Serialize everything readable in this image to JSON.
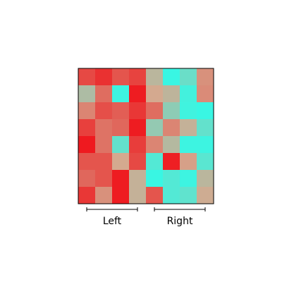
{
  "chart_data": {
    "type": "heatmap",
    "rows": 8,
    "cols": 8,
    "colors": {
      "low": "#f0131a",
      "high": "#33f9e6",
      "mid": "#d4a98f"
    },
    "values": [
      [
        0.18,
        0.1,
        0.22,
        0.16,
        0.58,
        0.98,
        0.83,
        0.42
      ],
      [
        0.62,
        0.3,
        0.97,
        0.03,
        0.5,
        0.57,
        0.95,
        0.4
      ],
      [
        0.38,
        0.2,
        0.25,
        0.12,
        0.3,
        0.72,
        0.96,
        0.98
      ],
      [
        0.15,
        0.32,
        0.28,
        0.03,
        0.7,
        0.38,
        0.55,
        0.85
      ],
      [
        0.02,
        0.32,
        0.85,
        0.14,
        0.38,
        0.6,
        0.97,
        0.97
      ],
      [
        0.22,
        0.22,
        0.5,
        0.18,
        0.9,
        0.04,
        0.47,
        0.88
      ],
      [
        0.28,
        0.22,
        0.03,
        0.55,
        0.98,
        0.9,
        0.97,
        0.58
      ],
      [
        0.12,
        0.42,
        0.03,
        0.55,
        0.22,
        0.9,
        0.86,
        0.52
      ]
    ],
    "groups": [
      {
        "label": "Left",
        "col_start": 0,
        "col_end": 3
      },
      {
        "label": "Right",
        "col_start": 4,
        "col_end": 7
      }
    ]
  }
}
